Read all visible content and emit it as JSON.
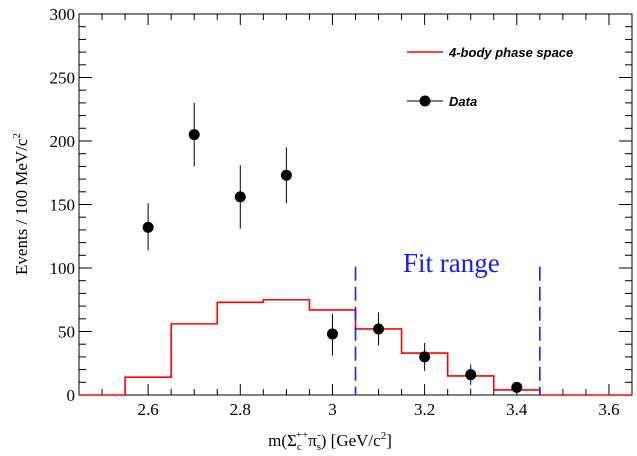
{
  "chart_data": {
    "type": "scatter",
    "xlabel": {
      "main": "m(Σ",
      "sub1": "c",
      "sup1": "++",
      "mid": "π",
      "sub2": "s",
      "sup2": "-",
      "tail": ") [GeV/c",
      "sup3": "2",
      "end": "]"
    },
    "ylabel": {
      "main": "Events / 100 MeV/c",
      "sup": "2"
    },
    "xlim": [
      2.45,
      3.65
    ],
    "ylim": [
      0,
      300
    ],
    "xticks": [
      2.6,
      2.8,
      3.0,
      3.2,
      3.4,
      3.6
    ],
    "xtick_labels": [
      "2.6",
      "2.8",
      "3",
      "3.2",
      "3.4",
      "3.6"
    ],
    "yticks": [
      0,
      50,
      100,
      150,
      200,
      250,
      300
    ],
    "ytick_labels": [
      "0",
      "50",
      "100",
      "150",
      "200",
      "250",
      "300"
    ],
    "legend": {
      "position": "top-right",
      "items": [
        {
          "label": "4-body phase space",
          "kind": "line",
          "color": "#ff0000"
        },
        {
          "label": "Data",
          "kind": "marker",
          "color": "#000000"
        }
      ]
    },
    "series": [
      {
        "name": "Data",
        "kind": "points",
        "color": "#000000",
        "points": [
          {
            "x": 2.6,
            "y": 132,
            "lo": 114,
            "hi": 151
          },
          {
            "x": 2.7,
            "y": 205,
            "lo": 180,
            "hi": 230
          },
          {
            "x": 2.8,
            "y": 156,
            "lo": 131,
            "hi": 181
          },
          {
            "x": 2.9,
            "y": 173,
            "lo": 151,
            "hi": 195
          },
          {
            "x": 3.0,
            "y": 48,
            "lo": 31,
            "hi": 64
          },
          {
            "x": 3.1,
            "y": 52,
            "lo": 39,
            "hi": 65
          },
          {
            "x": 3.2,
            "y": 30,
            "lo": 19,
            "hi": 41
          },
          {
            "x": 3.3,
            "y": 16,
            "lo": 8,
            "hi": 24
          },
          {
            "x": 3.4,
            "y": 6,
            "lo": 2,
            "hi": 10
          }
        ]
      },
      {
        "name": "4-body phase space",
        "kind": "step",
        "color": "#ff0000",
        "edges": [
          2.45,
          2.55,
          2.65,
          2.75,
          2.85,
          2.95,
          3.05,
          3.15,
          3.25,
          3.35,
          3.45,
          3.65
        ],
        "values": [
          0,
          14,
          56,
          73,
          75,
          67,
          52,
          33,
          15,
          4,
          0
        ]
      }
    ],
    "annotations": [
      {
        "text": "Fit range",
        "color": "#1a1aff"
      }
    ],
    "fit_range": {
      "from": 3.05,
      "to": 3.45,
      "color": "#1a1aff"
    }
  }
}
